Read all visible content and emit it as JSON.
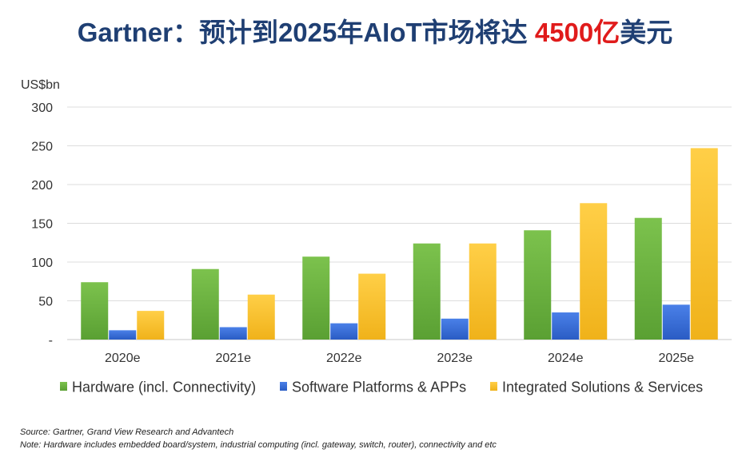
{
  "title": {
    "prefix": "Gartner：预计到2025年AIoT市场将达 ",
    "highlight": "4500亿",
    "suffix": "美元"
  },
  "chart_data": {
    "type": "bar",
    "ylabel": "US$bn",
    "ylim": [
      0,
      300
    ],
    "yticks": [
      {
        "value": 0,
        "label": "-"
      },
      {
        "value": 50,
        "label": "50"
      },
      {
        "value": 100,
        "label": "100"
      },
      {
        "value": 150,
        "label": "150"
      },
      {
        "value": 200,
        "label": "200"
      },
      {
        "value": 250,
        "label": "250"
      },
      {
        "value": 300,
        "label": "300"
      }
    ],
    "grid": true,
    "legend_position": "bottom",
    "categories": [
      "2020e",
      "2021e",
      "2022e",
      "2023e",
      "2024e",
      "2025e"
    ],
    "series": [
      {
        "name": "Hardware (incl. Connectivity)",
        "color": "#6db33f",
        "values": [
          74,
          91,
          107,
          124,
          141,
          157
        ]
      },
      {
        "name": "Software Platforms & APPs",
        "color": "#3a6fd8",
        "values": [
          12,
          16,
          21,
          27,
          35,
          45
        ]
      },
      {
        "name": "Integrated Solutions & Services",
        "color": "#f7c02b",
        "values": [
          37,
          58,
          85,
          124,
          176,
          247
        ]
      }
    ]
  },
  "source": {
    "line1": "Source: Gartner, Grand View Research and Advantech",
    "line2": "Note: Hardware includes embedded board/system, industrial computing (incl. gateway, switch, router), connectivity and etc"
  }
}
